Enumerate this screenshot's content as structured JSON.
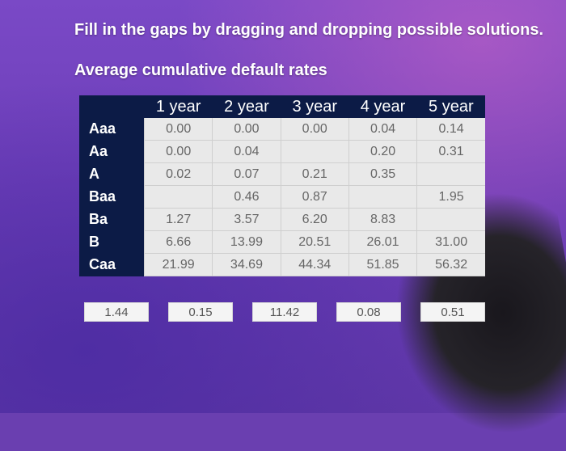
{
  "title": "Fill in the gaps by dragging and dropping possible solutions.",
  "subtitle": "Average cumulative default rates",
  "table": {
    "headers": [
      "",
      "1 year",
      "2 year",
      "3 year",
      "4 year",
      "5 year"
    ],
    "rows": [
      {
        "label": "Aaa",
        "cells": [
          "0.00",
          "0.00",
          "0.00",
          "0.04",
          "0.14"
        ]
      },
      {
        "label": "Aa",
        "cells": [
          "0.00",
          "0.04",
          "",
          "0.20",
          "0.31"
        ]
      },
      {
        "label": "A",
        "cells": [
          "0.02",
          "0.07",
          "0.21",
          "0.35",
          ""
        ]
      },
      {
        "label": "Baa",
        "cells": [
          "",
          "0.46",
          "0.87",
          "",
          "1.95"
        ]
      },
      {
        "label": "Ba",
        "cells": [
          "1.27",
          "3.57",
          "6.20",
          "8.83",
          ""
        ]
      },
      {
        "label": "B",
        "cells": [
          "6.66",
          "13.99",
          "20.51",
          "26.01",
          "31.00"
        ]
      },
      {
        "label": "Caa",
        "cells": [
          "21.99",
          "34.69",
          "44.34",
          "51.85",
          "56.32"
        ]
      }
    ]
  },
  "answers": [
    "1.44",
    "0.15",
    "11.42",
    "0.08",
    "0.51"
  ]
}
